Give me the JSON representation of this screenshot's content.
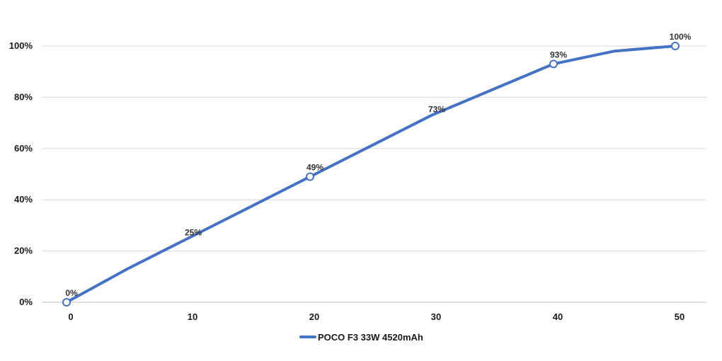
{
  "chart_data": {
    "type": "line",
    "x": [
      0,
      5,
      10,
      15,
      20,
      25,
      30,
      35,
      40,
      45,
      50
    ],
    "series": [
      {
        "name": "POCO F3 33W 4520mAh",
        "color": "#4472c4",
        "values": [
          0,
          13,
          25,
          37,
          49,
          61,
          73,
          83,
          93,
          98,
          100
        ]
      }
    ],
    "data_labels": [
      {
        "x": 0,
        "text": "0%"
      },
      {
        "x": 10,
        "text": "25%"
      },
      {
        "x": 20,
        "text": "49%"
      },
      {
        "x": 30,
        "text": "73%"
      },
      {
        "x": 40,
        "text": "93%"
      },
      {
        "x": 50,
        "text": "100%"
      }
    ],
    "marker_x": [
      0,
      20,
      40,
      50
    ],
    "x_ticks": [
      0,
      10,
      20,
      30,
      40,
      50
    ],
    "x_tick_labels": [
      "0",
      "10",
      "20",
      "30",
      "40",
      "50"
    ],
    "y_ticks": [
      0,
      20,
      40,
      60,
      80,
      100
    ],
    "y_tick_labels": [
      "0%",
      "20%",
      "40%",
      "60%",
      "80%",
      "100%"
    ],
    "xlim": [
      0,
      50
    ],
    "ylim": [
      0,
      100
    ],
    "grid": "horizontal",
    "legend_position": "bottom-center",
    "gridline_color": "#d9d9d9"
  }
}
